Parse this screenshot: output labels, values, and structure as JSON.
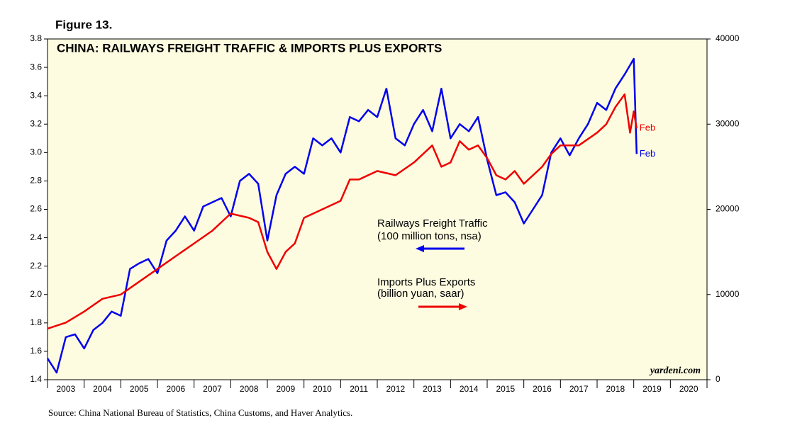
{
  "chart_data": {
    "type": "line",
    "figure_label": "Figure 13.",
    "title": "CHINA: RAILWAYS FREIGHT TRAFFIC & IMPORTS PLUS EXPORTS",
    "source": "Source: China National Bureau of Statistics, China Customs, and Haver Analytics.",
    "watermark": "yardeni.com",
    "background": "#fdfbe0",
    "xlim": [
      2003,
      2021
    ],
    "xticks": [
      2003,
      2004,
      2005,
      2006,
      2007,
      2008,
      2009,
      2010,
      2011,
      2012,
      2013,
      2014,
      2015,
      2016,
      2017,
      2018,
      2019,
      2020,
      2021
    ],
    "x_labels": [
      "2003",
      "2004",
      "2005",
      "2006",
      "2007",
      "2008",
      "2009",
      "2010",
      "2011",
      "2012",
      "2013",
      "2014",
      "2015",
      "2016",
      "2017",
      "2018",
      "2019",
      "2020"
    ],
    "ylim": [
      1.4,
      3.8
    ],
    "yticks": [
      1.4,
      1.6,
      1.8,
      {
        "value": 2,
        "label": "2.0"
      },
      2.2,
      2.4,
      2.6,
      2.8,
      {
        "value": 3,
        "label": "3.0"
      },
      3.2,
      3.4,
      3.6,
      3.8
    ],
    "y2lim": [
      0,
      40000
    ],
    "y2ticks": [
      0,
      10000,
      20000,
      30000,
      40000
    ],
    "series": [
      {
        "name": "Railways Freight Traffic",
        "unit": "(100 million tons, nsa)",
        "end_label": "Feb",
        "color": "#0000ee",
        "arrow": "left",
        "x": [
          2003,
          2003.25,
          2003.5,
          2003.75,
          2004,
          2004.25,
          2004.5,
          2004.75,
          2005,
          2005.25,
          2005.5,
          2005.75,
          2006,
          2006.25,
          2006.5,
          2006.75,
          2007,
          2007.25,
          2007.5,
          2007.75,
          2008,
          2008.25,
          2008.5,
          2008.75,
          2009,
          2009.25,
          2009.5,
          2009.75,
          2010,
          2010.25,
          2010.5,
          2010.75,
          2011,
          2011.25,
          2011.5,
          2011.75,
          2012,
          2012.25,
          2012.5,
          2012.75,
          2013,
          2013.25,
          2013.5,
          2013.75,
          2014,
          2014.25,
          2014.5,
          2014.75,
          2015,
          2015.25,
          2015.5,
          2015.75,
          2016,
          2016.25,
          2016.5,
          2016.75,
          2017,
          2017.25,
          2017.5,
          2017.75,
          2018,
          2018.25,
          2018.5,
          2018.75,
          2019,
          2019.08
        ],
        "values": [
          1.55,
          1.45,
          1.7,
          1.72,
          1.62,
          1.75,
          1.8,
          1.88,
          1.85,
          2.18,
          2.22,
          2.25,
          2.15,
          2.38,
          2.45,
          2.55,
          2.45,
          2.62,
          2.65,
          2.68,
          2.55,
          2.8,
          2.85,
          2.78,
          2.38,
          2.7,
          2.85,
          2.9,
          2.85,
          3.1,
          3.05,
          3.1,
          3.0,
          3.25,
          3.22,
          3.3,
          3.25,
          3.45,
          3.1,
          3.05,
          3.2,
          3.3,
          3.15,
          3.45,
          3.1,
          3.2,
          3.15,
          3.25,
          2.95,
          2.7,
          2.72,
          2.65,
          2.5,
          2.6,
          2.7,
          3.0,
          3.1,
          2.98,
          3.1,
          3.2,
          3.35,
          3.3,
          3.45,
          3.55,
          3.66,
          2.99
        ]
      },
      {
        "name": "Imports Plus Exports",
        "unit": "(billion yuan, saar)",
        "end_label": "Feb",
        "color": "#ee0000",
        "arrow": "right",
        "axis": "y2",
        "x": [
          2003,
          2003.5,
          2004,
          2004.5,
          2005,
          2005.5,
          2006,
          2006.5,
          2007,
          2007.5,
          2008,
          2008.5,
          2008.75,
          2009,
          2009.25,
          2009.5,
          2009.75,
          2010,
          2010.5,
          2011,
          2011.25,
          2011.5,
          2012,
          2012.5,
          2013,
          2013.5,
          2013.75,
          2014,
          2014.25,
          2014.5,
          2014.75,
          2015,
          2015.25,
          2015.5,
          2015.75,
          2016,
          2016.25,
          2016.5,
          2016.75,
          2017,
          2017.5,
          2018,
          2018.25,
          2018.5,
          2018.75,
          2018.9,
          2019,
          2019.08
        ],
        "values": [
          6000,
          6700,
          8000,
          9500,
          10000,
          11500,
          13000,
          14500,
          16000,
          17500,
          19500,
          19000,
          18500,
          15000,
          13000,
          15000,
          16000,
          19000,
          20000,
          21000,
          23500,
          23500,
          24500,
          24000,
          25500,
          27500,
          25000,
          25500,
          28000,
          27000,
          27500,
          26000,
          24000,
          23500,
          24500,
          23000,
          24000,
          25000,
          26500,
          27500,
          27500,
          29000,
          30000,
          32000,
          33500,
          29000,
          31500,
          29500
        ]
      }
    ]
  }
}
